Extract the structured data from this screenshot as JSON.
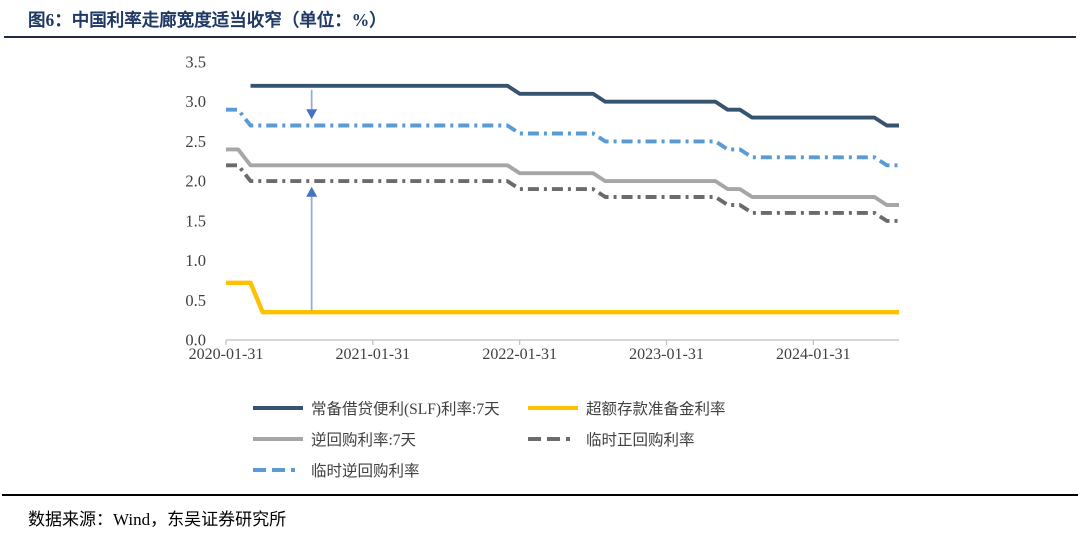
{
  "title": "图6：中国利率走廊宽度适当收窄（单位：%）",
  "footer": {
    "source_label": "数据来源：Wind，东吴证券研究所"
  },
  "colors": {
    "title": "#1F3864",
    "axis": "#BFBFBF",
    "tick_label": "#404040",
    "arrow_head": "#4472C4",
    "arrow_shaft": "#8FAADC"
  },
  "chart_data": {
    "type": "line",
    "title": "中国利率走廊宽度适当收窄",
    "unit": "%",
    "ylim": [
      0.0,
      3.5
    ],
    "grid": false,
    "legend_position": "bottom",
    "y_axis": {
      "tick_labels": [
        "0.0",
        "0.5",
        "1.0",
        "1.5",
        "2.0",
        "2.5",
        "3.0",
        "3.5"
      ]
    },
    "x_axis": {
      "tick_labels": [
        "2020-01-31",
        "2021-01-31",
        "2022-01-31",
        "2023-01-31",
        "2024-01-31"
      ],
      "tick_month_indices": [
        0,
        12,
        24,
        36,
        48
      ]
    },
    "x": [
      "2020-01-31",
      "2020-02-29",
      "2020-03-31",
      "2020-04-30",
      "2020-05-31",
      "2020-06-30",
      "2020-07-31",
      "2020-08-31",
      "2020-09-30",
      "2020-10-31",
      "2020-11-30",
      "2020-12-31",
      "2021-01-31",
      "2021-02-28",
      "2021-03-31",
      "2021-04-30",
      "2021-05-31",
      "2021-06-30",
      "2021-07-31",
      "2021-08-31",
      "2021-09-30",
      "2021-10-31",
      "2021-11-30",
      "2021-12-31",
      "2022-01-31",
      "2022-02-28",
      "2022-03-31",
      "2022-04-30",
      "2022-05-31",
      "2022-06-30",
      "2022-07-31",
      "2022-08-31",
      "2022-09-30",
      "2022-10-31",
      "2022-11-30",
      "2022-12-31",
      "2023-01-31",
      "2023-02-28",
      "2023-03-31",
      "2023-04-30",
      "2023-05-31",
      "2023-06-30",
      "2023-07-31",
      "2023-08-31",
      "2023-09-30",
      "2023-10-31",
      "2023-11-30",
      "2023-12-31",
      "2024-01-31",
      "2024-02-29",
      "2024-03-31",
      "2024-04-30",
      "2024-05-31",
      "2024-06-30",
      "2024-07-31",
      "2024-08-31"
    ],
    "series": [
      {
        "name": "常备借贷便利(SLF)利率:7天",
        "color": "#36536F",
        "style": "solid",
        "values": [
          null,
          null,
          3.2,
          3.2,
          3.2,
          3.2,
          3.2,
          3.2,
          3.2,
          3.2,
          3.2,
          3.2,
          3.2,
          3.2,
          3.2,
          3.2,
          3.2,
          3.2,
          3.2,
          3.2,
          3.2,
          3.2,
          3.2,
          3.2,
          3.1,
          3.1,
          3.1,
          3.1,
          3.1,
          3.1,
          3.1,
          3.0,
          3.0,
          3.0,
          3.0,
          3.0,
          3.0,
          3.0,
          3.0,
          3.0,
          3.0,
          2.9,
          2.9,
          2.8,
          2.8,
          2.8,
          2.8,
          2.8,
          2.8,
          2.8,
          2.8,
          2.8,
          2.8,
          2.8,
          2.7,
          2.7
        ]
      },
      {
        "name": "超额存款准备金利率",
        "color": "#FFC000",
        "style": "solid",
        "values": [
          0.72,
          0.72,
          0.72,
          0.35,
          0.35,
          0.35,
          0.35,
          0.35,
          0.35,
          0.35,
          0.35,
          0.35,
          0.35,
          0.35,
          0.35,
          0.35,
          0.35,
          0.35,
          0.35,
          0.35,
          0.35,
          0.35,
          0.35,
          0.35,
          0.35,
          0.35,
          0.35,
          0.35,
          0.35,
          0.35,
          0.35,
          0.35,
          0.35,
          0.35,
          0.35,
          0.35,
          0.35,
          0.35,
          0.35,
          0.35,
          0.35,
          0.35,
          0.35,
          0.35,
          0.35,
          0.35,
          0.35,
          0.35,
          0.35,
          0.35,
          0.35,
          0.35,
          0.35,
          0.35,
          0.35,
          0.35
        ]
      },
      {
        "name": "逆回购利率:7天",
        "color": "#A6A6A6",
        "style": "solid",
        "values": [
          2.4,
          2.4,
          2.2,
          2.2,
          2.2,
          2.2,
          2.2,
          2.2,
          2.2,
          2.2,
          2.2,
          2.2,
          2.2,
          2.2,
          2.2,
          2.2,
          2.2,
          2.2,
          2.2,
          2.2,
          2.2,
          2.2,
          2.2,
          2.2,
          2.1,
          2.1,
          2.1,
          2.1,
          2.1,
          2.1,
          2.1,
          2.0,
          2.0,
          2.0,
          2.0,
          2.0,
          2.0,
          2.0,
          2.0,
          2.0,
          2.0,
          1.9,
          1.9,
          1.8,
          1.8,
          1.8,
          1.8,
          1.8,
          1.8,
          1.8,
          1.8,
          1.8,
          1.8,
          1.8,
          1.7,
          1.7
        ]
      },
      {
        "name": "临时正回购利率",
        "color": "#6D6A6A",
        "style": "dash-dot",
        "values": [
          2.2,
          2.2,
          2.0,
          2.0,
          2.0,
          2.0,
          2.0,
          2.0,
          2.0,
          2.0,
          2.0,
          2.0,
          2.0,
          2.0,
          2.0,
          2.0,
          2.0,
          2.0,
          2.0,
          2.0,
          2.0,
          2.0,
          2.0,
          2.0,
          1.9,
          1.9,
          1.9,
          1.9,
          1.9,
          1.9,
          1.9,
          1.8,
          1.8,
          1.8,
          1.8,
          1.8,
          1.8,
          1.8,
          1.8,
          1.8,
          1.8,
          1.7,
          1.7,
          1.6,
          1.6,
          1.6,
          1.6,
          1.6,
          1.6,
          1.6,
          1.6,
          1.6,
          1.6,
          1.6,
          1.5,
          1.5
        ]
      },
      {
        "name": "临时逆回购利率",
        "color": "#5B9BD5",
        "style": "dash-dot",
        "values": [
          2.9,
          2.9,
          2.7,
          2.7,
          2.7,
          2.7,
          2.7,
          2.7,
          2.7,
          2.7,
          2.7,
          2.7,
          2.7,
          2.7,
          2.7,
          2.7,
          2.7,
          2.7,
          2.7,
          2.7,
          2.7,
          2.7,
          2.7,
          2.7,
          2.6,
          2.6,
          2.6,
          2.6,
          2.6,
          2.6,
          2.6,
          2.5,
          2.5,
          2.5,
          2.5,
          2.5,
          2.5,
          2.5,
          2.5,
          2.5,
          2.5,
          2.4,
          2.4,
          2.3,
          2.3,
          2.3,
          2.3,
          2.3,
          2.3,
          2.3,
          2.3,
          2.3,
          2.3,
          2.3,
          2.2,
          2.2
        ]
      }
    ],
    "annotations": [
      {
        "type": "arrow",
        "direction": "down",
        "month_index": 7,
        "value_from": 3.15,
        "value_to": 2.78
      },
      {
        "type": "arrow",
        "direction": "up",
        "month_index": 7,
        "value_from": 0.37,
        "value_to": 1.93
      }
    ]
  }
}
